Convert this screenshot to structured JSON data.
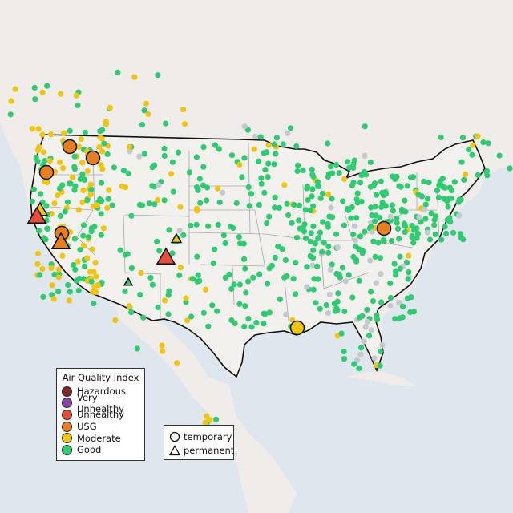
{
  "colors": {
    "water": "#dfe6ee",
    "land": "#efecea",
    "us_land": "#f3f1ee",
    "border": "#111111",
    "state_line": "#a9a9a9",
    "hazardous": "#7e2a28",
    "very_unhealthy": "#8e44ad",
    "unhealthy": "#e74c3c",
    "usg": "#e67e22",
    "moderate": "#f1c40f",
    "good": "#2ecc71",
    "nodata": "#c4c9cf"
  },
  "legend": {
    "title": "Air Quality Index",
    "items": [
      {
        "label": "Hazardous",
        "color": "#7e2a28"
      },
      {
        "label": "Very Unhealthy",
        "color": "#8e44ad"
      },
      {
        "label": "Unhealthy",
        "color": "#e74c3c"
      },
      {
        "label": "USG",
        "color": "#e67e22"
      },
      {
        "label": "Moderate",
        "color": "#f1c40f"
      },
      {
        "label": "Good",
        "color": "#2ecc71"
      }
    ]
  },
  "site_legend": {
    "temporary": "temporary",
    "permanent": "permanent"
  }
}
